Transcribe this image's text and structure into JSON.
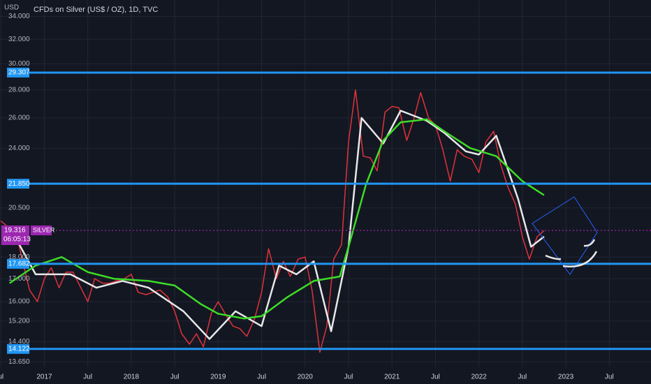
{
  "chart_data": {
    "type": "line",
    "title": "CFDs on Silver (US$ / OZ), 1D, TVC",
    "y_axis_label": "USD",
    "log_scale": true,
    "grid": true,
    "xlim": [
      2016.49,
      2023.98
    ],
    "ylim": [
      13.48,
      35.5
    ],
    "xticks": [
      {
        "value": 2016.5,
        "label": "ul"
      },
      {
        "value": 2017.0,
        "label": "2017"
      },
      {
        "value": 2017.5,
        "label": "Jul"
      },
      {
        "value": 2018.0,
        "label": "2018"
      },
      {
        "value": 2018.5,
        "label": "Jul"
      },
      {
        "value": 2019.0,
        "label": "2019"
      },
      {
        "value": 2019.5,
        "label": "Jul"
      },
      {
        "value": 2020.0,
        "label": "2020"
      },
      {
        "value": 2020.5,
        "label": "Jul"
      },
      {
        "value": 2021.0,
        "label": "2021"
      },
      {
        "value": 2021.5,
        "label": "Jul"
      },
      {
        "value": 2022.0,
        "label": "2022"
      },
      {
        "value": 2022.5,
        "label": "Jul"
      },
      {
        "value": 2023.0,
        "label": "2023"
      },
      {
        "value": 2023.5,
        "label": "Jul"
      }
    ],
    "yticks": [
      {
        "value": 34,
        "label": "34.000"
      },
      {
        "value": 32,
        "label": "32.000"
      },
      {
        "value": 30,
        "label": "30.000"
      },
      {
        "value": 28,
        "label": "28.000"
      },
      {
        "value": 26,
        "label": "26.000"
      },
      {
        "value": 24,
        "label": "24.000"
      },
      {
        "value": 20.5,
        "label": "20.500"
      },
      {
        "value": 18,
        "label": "18.000"
      },
      {
        "value": 17,
        "label": "17.000"
      },
      {
        "value": 16,
        "label": "16.000"
      },
      {
        "value": 15.2,
        "label": "15.200"
      },
      {
        "value": 14.4,
        "label": "14.400"
      },
      {
        "value": 13.65,
        "label": "13.650"
      }
    ],
    "levels": [
      29.307,
      {
        "value": 21.85,
        "label": "21.850"
      },
      17.682,
      14.122
    ],
    "level_color": "#2196f3",
    "last_price": {
      "value": 19.316,
      "symbol": "SILVER",
      "countdown": "06:05:13",
      "color": "#9c27b0"
    },
    "series": [
      {
        "name": "Price",
        "color": "#e0333a",
        "x": [
          2016.5,
          2016.58,
          2016.67,
          2016.75,
          2016.83,
          2016.92,
          2017.0,
          2017.08,
          2017.17,
          2017.25,
          2017.33,
          2017.42,
          2017.5,
          2017.58,
          2017.67,
          2017.75,
          2017.83,
          2017.92,
          2018.0,
          2018.08,
          2018.17,
          2018.25,
          2018.33,
          2018.42,
          2018.5,
          2018.58,
          2018.67,
          2018.75,
          2018.83,
          2018.92,
          2019.0,
          2019.08,
          2019.17,
          2019.25,
          2019.33,
          2019.42,
          2019.5,
          2019.58,
          2019.67,
          2019.75,
          2019.83,
          2019.92,
          2020.0,
          2020.08,
          2020.17,
          2020.25,
          2020.33,
          2020.42,
          2020.5,
          2020.58,
          2020.67,
          2020.75,
          2020.83,
          2020.92,
          2021.0,
          2021.08,
          2021.17,
          2021.25,
          2021.33,
          2021.42,
          2021.5,
          2021.58,
          2021.67,
          2021.75,
          2021.83,
          2021.92,
          2022.0,
          2022.08,
          2022.17,
          2022.25,
          2022.33,
          2022.42,
          2022.5,
          2022.58,
          2022.67,
          2022.75
        ],
        "values": [
          19.8,
          19.5,
          19.3,
          17.8,
          16.5,
          16.0,
          17.0,
          17.5,
          16.6,
          17.3,
          17.3,
          16.6,
          16.0,
          17.0,
          16.8,
          16.8,
          16.9,
          17.0,
          17.2,
          16.4,
          16.3,
          16.4,
          16.5,
          16.2,
          15.6,
          14.7,
          14.3,
          14.7,
          14.2,
          15.5,
          16.0,
          15.5,
          15.0,
          14.9,
          14.6,
          15.3,
          16.4,
          18.4,
          17.0,
          17.8,
          17.1,
          17.9,
          18.0,
          16.5,
          14.0,
          15.0,
          17.9,
          18.6,
          24.4,
          28.0,
          23.5,
          23.4,
          22.6,
          26.4,
          26.8,
          26.7,
          24.5,
          25.9,
          27.8,
          26.0,
          25.5,
          24.0,
          22.0,
          23.9,
          23.5,
          23.3,
          22.5,
          24.4,
          25.1,
          23.0,
          21.7,
          20.7,
          19.0,
          17.9,
          19.0,
          19.3
        ]
      },
      {
        "name": "Fast MA",
        "color": "#e8e8e8",
        "x": [
          2016.6,
          2016.9,
          2017.3,
          2017.6,
          2017.9,
          2018.2,
          2018.6,
          2018.9,
          2019.2,
          2019.5,
          2019.7,
          2019.9,
          2020.1,
          2020.3,
          2020.5,
          2020.65,
          2020.9,
          2021.1,
          2021.4,
          2021.6,
          2021.85,
          2022.0,
          2022.2,
          2022.45,
          2022.6,
          2022.75
        ],
        "values": [
          19.5,
          17.2,
          17.2,
          16.6,
          16.9,
          16.6,
          15.6,
          14.5,
          15.6,
          15.0,
          17.6,
          17.2,
          17.8,
          14.8,
          18.5,
          26.0,
          24.3,
          26.5,
          25.8,
          25.0,
          23.8,
          23.6,
          24.8,
          21.0,
          18.5,
          19.0
        ]
      },
      {
        "name": "Slow MA",
        "color": "#3ddc27",
        "x": [
          2016.6,
          2016.9,
          2017.2,
          2017.5,
          2017.8,
          2018.2,
          2018.5,
          2018.8,
          2019.0,
          2019.3,
          2019.5,
          2019.8,
          2020.1,
          2020.4,
          2020.5,
          2020.7,
          2020.9,
          2021.1,
          2021.4,
          2021.6,
          2021.9,
          2022.2,
          2022.5,
          2022.75
        ],
        "values": [
          16.8,
          17.6,
          18.0,
          17.3,
          17.0,
          16.9,
          16.7,
          15.9,
          15.5,
          15.3,
          15.4,
          16.2,
          16.9,
          17.1,
          18.5,
          21.8,
          24.5,
          25.7,
          25.9,
          25.1,
          24.0,
          23.5,
          22.0,
          21.2
        ]
      }
    ]
  }
}
